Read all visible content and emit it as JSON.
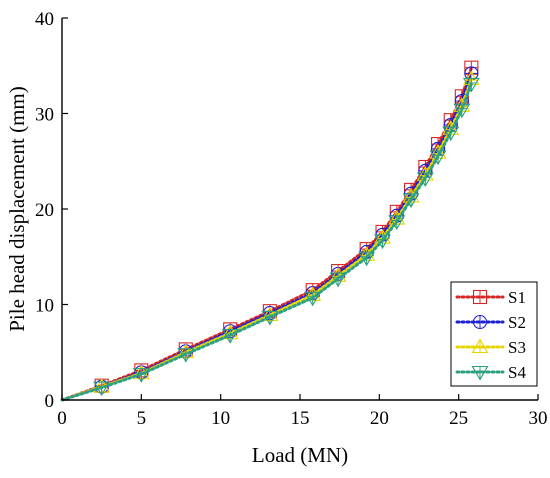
{
  "chart_data": {
    "type": "line",
    "xlabel": "Load (MN)",
    "ylabel": "Pile head displacement (mm)",
    "xlim": [
      0,
      30
    ],
    "ylim": [
      0,
      40
    ],
    "xticks": [
      0,
      5,
      10,
      15,
      20,
      25,
      30
    ],
    "yticks": [
      0,
      10,
      20,
      30,
      40
    ],
    "legend": "bottom-right",
    "grid": false,
    "series": [
      {
        "name": "S1",
        "color": "#d62728",
        "marker": "square",
        "x": [
          0,
          2.5,
          5.0,
          7.8,
          10.6,
          13.1,
          15.8,
          17.4,
          19.2,
          20.2,
          21.1,
          22.0,
          22.9,
          23.7,
          24.5,
          25.2,
          25.8
        ],
        "y": [
          0,
          1.5,
          3.1,
          5.3,
          7.4,
          9.3,
          11.5,
          13.5,
          15.8,
          17.6,
          19.7,
          22.0,
          24.4,
          26.8,
          29.3,
          31.8,
          34.8
        ]
      },
      {
        "name": "S2",
        "color": "#1f1fd6",
        "marker": "circle",
        "x": [
          0,
          2.5,
          5.0,
          7.8,
          10.6,
          13.1,
          15.8,
          17.4,
          19.2,
          20.2,
          21.1,
          22.0,
          22.9,
          23.7,
          24.5,
          25.2,
          25.8
        ],
        "y": [
          0,
          1.4,
          2.9,
          5.1,
          7.2,
          9.1,
          11.2,
          13.2,
          15.5,
          17.3,
          19.3,
          21.6,
          24.0,
          26.3,
          28.8,
          31.3,
          34.2
        ]
      },
      {
        "name": "S3",
        "color": "#e6d600",
        "marker": "triangle-up",
        "x": [
          0,
          2.5,
          5.0,
          7.8,
          10.6,
          13.1,
          15.8,
          17.4,
          19.2,
          20.2,
          21.1,
          22.0,
          22.9,
          23.7,
          24.5,
          25.2,
          25.8
        ],
        "y": [
          0,
          1.4,
          2.8,
          5.0,
          7.0,
          8.9,
          11.0,
          13.0,
          15.2,
          17.0,
          19.0,
          21.3,
          23.6,
          25.9,
          28.4,
          30.8,
          33.6
        ]
      },
      {
        "name": "S4",
        "color": "#2ca080",
        "marker": "triangle-down",
        "x": [
          0,
          2.5,
          5.0,
          7.8,
          10.6,
          13.1,
          15.8,
          17.4,
          19.2,
          20.2,
          21.1,
          22.0,
          22.9,
          23.7,
          24.5,
          25.2,
          25.8
        ],
        "y": [
          0,
          1.3,
          2.7,
          4.8,
          6.8,
          8.7,
          10.7,
          12.7,
          14.9,
          16.7,
          18.7,
          21.0,
          23.2,
          25.5,
          28.0,
          30.4,
          33.1
        ]
      }
    ]
  }
}
